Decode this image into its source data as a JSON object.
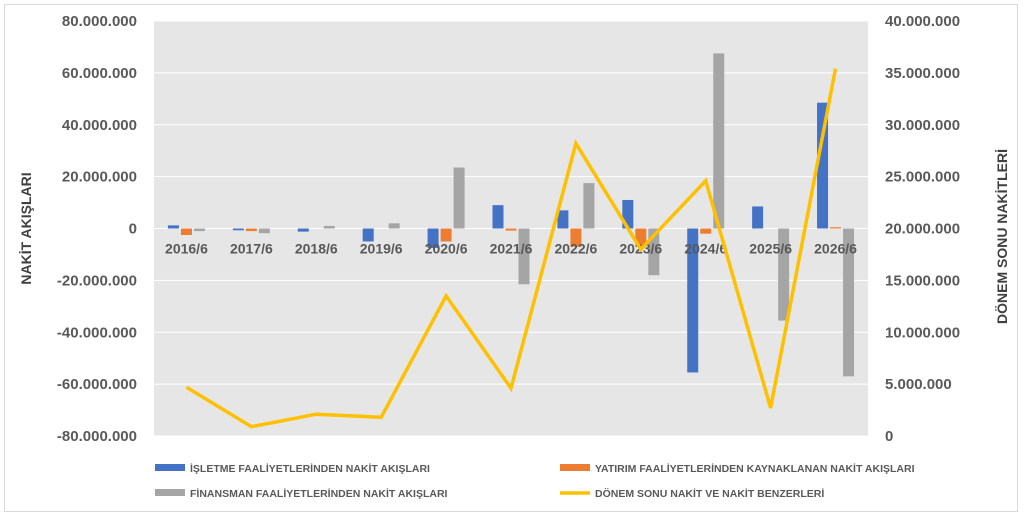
{
  "chart_data": {
    "type": "bar",
    "categories": [
      "2016/6",
      "2017/6",
      "2018/6",
      "2019/6",
      "2020/6",
      "2021/6",
      "2022/6",
      "2023/6",
      "2024/6",
      "2025/6",
      "2026/6"
    ],
    "series": [
      {
        "name": "İŞLETME FAALİYETLERİNDEN NAKİT AKIŞLARI",
        "type": "bar",
        "axis": "left",
        "color": "#4472c4",
        "values": [
          1200000,
          -700000,
          -1200000,
          -5000000,
          -7500000,
          9000000,
          7000000,
          11000000,
          -55500000,
          8500000,
          48500000
        ]
      },
      {
        "name": "YATIRIM FAALİYETLERİNDEN KAYNAKLANAN NAKİT AKIŞLARI",
        "type": "bar",
        "axis": "left",
        "color": "#ed7d31",
        "values": [
          -2500000,
          -1000000,
          0,
          0,
          -5000000,
          -800000,
          -7000000,
          -7000000,
          -2000000,
          0,
          500000
        ]
      },
      {
        "name": "FİNANSMAN FAALİYETLERİNDEN NAKİT AKIŞLARI",
        "type": "bar",
        "axis": "left",
        "color": "#a5a5a5",
        "values": [
          -1000000,
          -1800000,
          1000000,
          2000000,
          23500000,
          -21500000,
          17500000,
          -18000000,
          67500000,
          -35500000,
          -57000000
        ]
      },
      {
        "name": "DÖNEM SONU NAKİT VE NAKİT BENZERLERİ",
        "type": "line",
        "axis": "right",
        "color": "#ffc000",
        "values": [
          4700000,
          900000,
          2100000,
          1800000,
          13500000,
          4600000,
          28200000,
          18000000,
          24600000,
          2700000,
          35400000
        ]
      }
    ],
    "ylabel": "NAKİT AKIŞLARI",
    "y2label": "DÖNEM SONU NAKİTLERİ",
    "ylim": [
      -80000000,
      80000000
    ],
    "y2lim": [
      0,
      40000000
    ],
    "yticks": [
      "80.000.000",
      "60.000.000",
      "40.000.000",
      "20.000.000",
      "0",
      "-20.000.000",
      "-40.000.000",
      "-60.000.000",
      "-80.000.000"
    ],
    "y2ticks": [
      "40.000.000",
      "35.000.000",
      "30.000.000",
      "25.000.000",
      "20.000.000",
      "15.000.000",
      "10.000.000",
      "5.000.000",
      "0"
    ],
    "grid": true,
    "legend_position": "bottom",
    "plot_background": "#e7e6e6"
  }
}
